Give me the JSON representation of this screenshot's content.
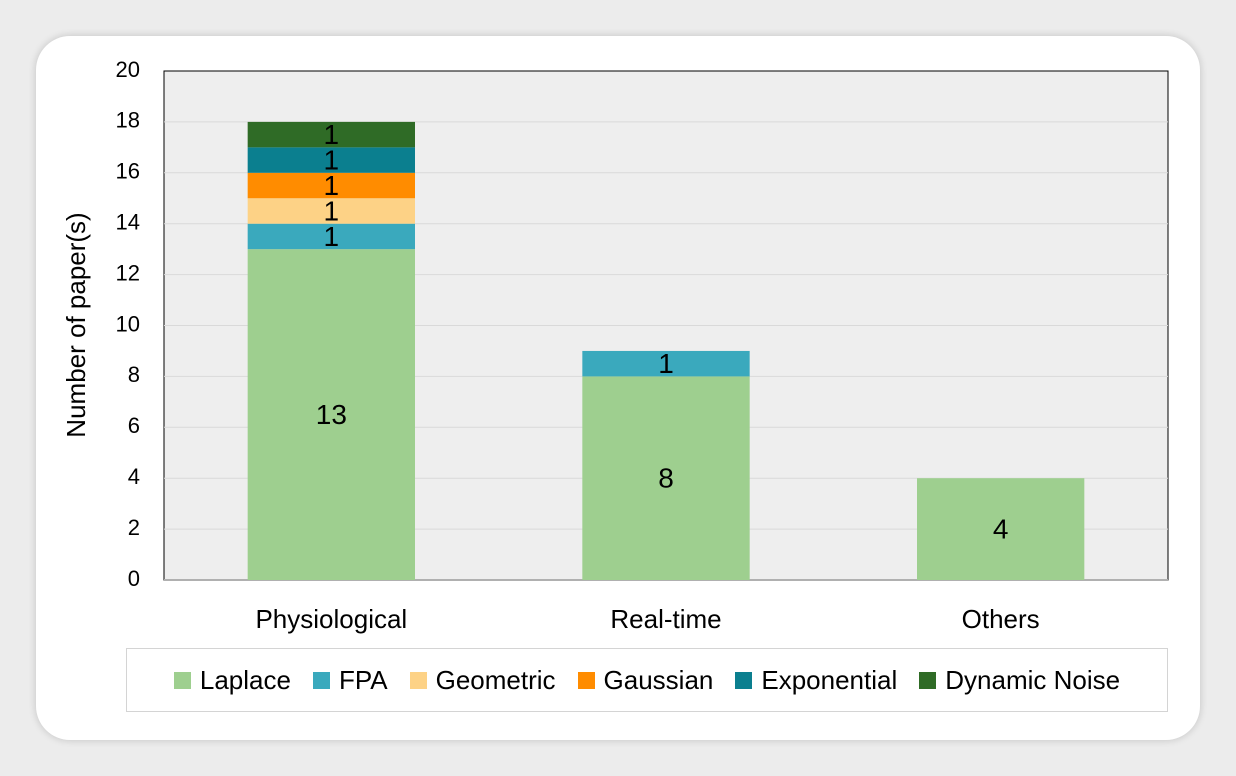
{
  "chart_data": {
    "type": "bar",
    "stacked": true,
    "categories": [
      "Physiological",
      "Real-time",
      "Others"
    ],
    "series": [
      {
        "name": "Laplace",
        "color": "#9ecf8f",
        "values": [
          13,
          8,
          4
        ]
      },
      {
        "name": "FPA",
        "color": "#3aa9bd",
        "values": [
          1,
          1,
          0
        ]
      },
      {
        "name": "Geometric",
        "color": "#fdd286",
        "values": [
          1,
          0,
          0
        ]
      },
      {
        "name": "Gaussian",
        "color": "#ff8c00",
        "values": [
          1,
          0,
          0
        ]
      },
      {
        "name": "Exponential",
        "color": "#0b7f8f",
        "values": [
          1,
          0,
          0
        ]
      },
      {
        "name": "Dynamic Noise",
        "color": "#2f6b26",
        "values": [
          1,
          0,
          0
        ]
      }
    ],
    "ylabel": "Number of paper(s)",
    "ylim": [
      0,
      20
    ],
    "yticks": [
      0,
      2,
      4,
      6,
      8,
      10,
      12,
      14,
      16,
      18,
      20
    ],
    "grid": true,
    "legend": "bottom",
    "data_labels": true
  }
}
